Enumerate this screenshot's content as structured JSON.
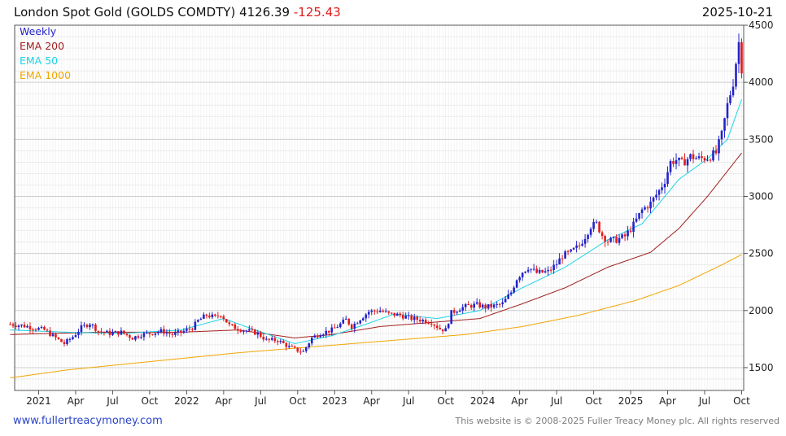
{
  "header": {
    "title_main": "London Spot Gold (GOLDS COMDTY) 4126.39",
    "change": "-125.43",
    "date": "2025-10-21"
  },
  "footer": {
    "website": "www.fullertreacymoney.com",
    "copyright": "This website is © 2008-2025 Fuller Treacy Money plc. All rights reserved"
  },
  "chart_data": {
    "type": "line",
    "title": "London Spot Gold (GOLDS COMDTY) 4126.39 -125.43",
    "xlabel": "",
    "ylabel": "",
    "ylim": [
      1300,
      4500
    ],
    "xlim_weeks": [
      0,
      253
    ],
    "yticks": [
      1500,
      2000,
      2500,
      3000,
      3500,
      4000,
      4500
    ],
    "xticks": [
      {
        "label": "2021",
        "week": 10
      },
      {
        "label": "Apr",
        "week": 23
      },
      {
        "label": "Jul",
        "week": 36
      },
      {
        "label": "Oct",
        "week": 49
      },
      {
        "label": "2022",
        "week": 62
      },
      {
        "label": "Apr",
        "week": 75
      },
      {
        "label": "Jul",
        "week": 88
      },
      {
        "label": "Oct",
        "week": 101
      },
      {
        "label": "2023",
        "week": 114
      },
      {
        "label": "Apr",
        "week": 127
      },
      {
        "label": "Jul",
        "week": 140
      },
      {
        "label": "Oct",
        "week": 153
      },
      {
        "label": "2024",
        "week": 166
      },
      {
        "label": "Apr",
        "week": 179
      },
      {
        "label": "Jul",
        "week": 192
      },
      {
        "label": "Oct",
        "week": 205
      },
      {
        "label": "2025",
        "week": 218
      },
      {
        "label": "Apr",
        "week": 231
      },
      {
        "label": "Jul",
        "week": 244
      },
      {
        "label": "Oct",
        "week": 257
      }
    ],
    "legend": [
      {
        "name": "Weekly",
        "color": "#2323c8"
      },
      {
        "name": "EMA 200",
        "color": "#a01e1e"
      },
      {
        "name": "EMA 50",
        "color": "#1fd3e8"
      },
      {
        "name": "EMA 1000",
        "color": "#f0a500"
      }
    ],
    "legend_position": "top-left",
    "grid": true,
    "colors": {
      "up": "#2323c8",
      "down": "#e01b1b"
    },
    "price_keyframes": [
      [
        0,
        1880
      ],
      [
        4,
        1870
      ],
      [
        8,
        1850
      ],
      [
        12,
        1830
      ],
      [
        16,
        1760
      ],
      [
        19,
        1710
      ],
      [
        22,
        1770
      ],
      [
        25,
        1850
      ],
      [
        28,
        1890
      ],
      [
        31,
        1820
      ],
      [
        35,
        1800
      ],
      [
        39,
        1810
      ],
      [
        43,
        1760
      ],
      [
        46,
        1790
      ],
      [
        49,
        1800
      ],
      [
        53,
        1820
      ],
      [
        57,
        1790
      ],
      [
        60,
        1810
      ],
      [
        64,
        1850
      ],
      [
        66,
        1910
      ],
      [
        69,
        1960
      ],
      [
        72,
        1940
      ],
      [
        74,
        1970
      ],
      [
        77,
        1870
      ],
      [
        80,
        1840
      ],
      [
        84,
        1820
      ],
      [
        87,
        1800
      ],
      [
        90,
        1740
      ],
      [
        94,
        1740
      ],
      [
        98,
        1680
      ],
      [
        101,
        1650
      ],
      [
        103,
        1640
      ],
      [
        106,
        1760
      ],
      [
        109,
        1800
      ],
      [
        113,
        1830
      ],
      [
        116,
        1880
      ],
      [
        118,
        1920
      ],
      [
        120,
        1860
      ],
      [
        123,
        1930
      ],
      [
        126,
        1990
      ],
      [
        130,
        2000
      ],
      [
        133,
        1970
      ],
      [
        137,
        1960
      ],
      [
        141,
        1930
      ],
      [
        144,
        1920
      ],
      [
        148,
        1900
      ],
      [
        151,
        1840
      ],
      [
        153,
        1830
      ],
      [
        155,
        1980
      ],
      [
        158,
        2020
      ],
      [
        161,
        2040
      ],
      [
        164,
        2050
      ],
      [
        167,
        2030
      ],
      [
        170,
        2040
      ],
      [
        173,
        2060
      ],
      [
        176,
        2160
      ],
      [
        178,
        2280
      ],
      [
        180,
        2340
      ],
      [
        182,
        2380
      ],
      [
        185,
        2330
      ],
      [
        189,
        2340
      ],
      [
        192,
        2410
      ],
      [
        194,
        2480
      ],
      [
        197,
        2510
      ],
      [
        200,
        2570
      ],
      [
        202,
        2650
      ],
      [
        204,
        2740
      ],
      [
        206,
        2760
      ],
      [
        208,
        2660
      ],
      [
        210,
        2610
      ],
      [
        213,
        2620
      ],
      [
        216,
        2650
      ],
      [
        219,
        2750
      ],
      [
        222,
        2880
      ],
      [
        225,
        2940
      ],
      [
        228,
        3050
      ],
      [
        230,
        3140
      ],
      [
        232,
        3300
      ],
      [
        234,
        3320
      ],
      [
        236,
        3290
      ],
      [
        239,
        3350
      ],
      [
        242,
        3330
      ],
      [
        245,
        3340
      ],
      [
        248,
        3380
      ],
      [
        250,
        3540
      ],
      [
        252,
        3800
      ],
      [
        254,
        4000
      ],
      [
        256,
        4350
      ],
      [
        257,
        4126
      ]
    ],
    "ema_200": [
      [
        0,
        1790
      ],
      [
        30,
        1810
      ],
      [
        60,
        1810
      ],
      [
        80,
        1830
      ],
      [
        100,
        1760
      ],
      [
        113,
        1790
      ],
      [
        130,
        1860
      ],
      [
        150,
        1900
      ],
      [
        165,
        1930
      ],
      [
        180,
        2060
      ],
      [
        195,
        2200
      ],
      [
        210,
        2380
      ],
      [
        225,
        2510
      ],
      [
        235,
        2720
      ],
      [
        245,
        3000
      ],
      [
        257,
        3380
      ]
    ],
    "ema_50": [
      [
        0,
        1830
      ],
      [
        20,
        1810
      ],
      [
        40,
        1800
      ],
      [
        60,
        1830
      ],
      [
        75,
        1930
      ],
      [
        85,
        1840
      ],
      [
        100,
        1710
      ],
      [
        113,
        1780
      ],
      [
        125,
        1880
      ],
      [
        135,
        1970
      ],
      [
        150,
        1930
      ],
      [
        165,
        2000
      ],
      [
        180,
        2200
      ],
      [
        195,
        2380
      ],
      [
        210,
        2620
      ],
      [
        222,
        2760
      ],
      [
        235,
        3150
      ],
      [
        245,
        3330
      ],
      [
        252,
        3500
      ],
      [
        257,
        3850
      ]
    ],
    "ema_1000": [
      [
        0,
        1410
      ],
      [
        20,
        1480
      ],
      [
        40,
        1530
      ],
      [
        60,
        1580
      ],
      [
        80,
        1630
      ],
      [
        100,
        1670
      ],
      [
        120,
        1710
      ],
      [
        140,
        1750
      ],
      [
        160,
        1790
      ],
      [
        180,
        1860
      ],
      [
        200,
        1960
      ],
      [
        220,
        2090
      ],
      [
        235,
        2220
      ],
      [
        250,
        2400
      ],
      [
        257,
        2490
      ]
    ]
  }
}
